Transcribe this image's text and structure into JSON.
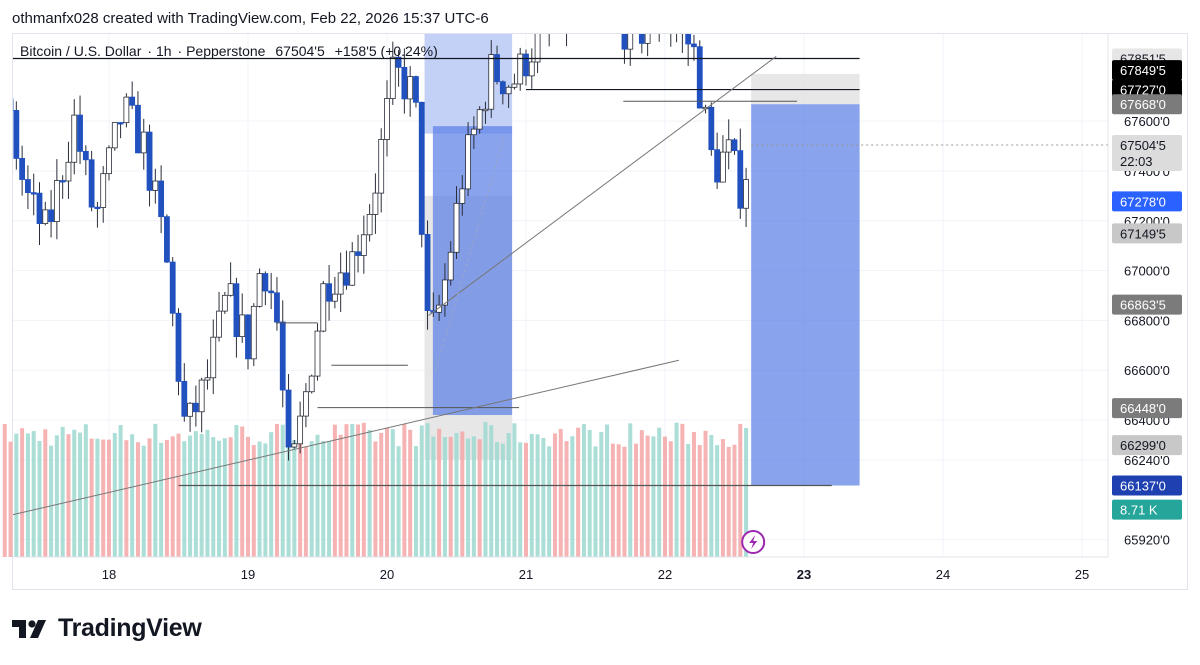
{
  "caption": "othmanfx028 created with TradingView.com, Feb 22, 2026 15:37 UTC-6",
  "symbol": {
    "name": "Bitcoin / U.S. Dollar",
    "interval": "1h",
    "exchange": "Pepperstone",
    "last": "67504'5",
    "change": "+158'5 (+0.24%)"
  },
  "brand": "TradingView",
  "colors": {
    "up": "#ffffff",
    "down": "#2151bf",
    "wick": "#2a2e39",
    "vol_up": "#9bd8cf",
    "vol_down": "#f5a6a6",
    "zone": "#5b7fe6",
    "zone_light": "#a9bdf3",
    "grey_zone": "#e4e4e4"
  },
  "chart_data": {
    "type": "candlestick",
    "x_axis": {
      "ticks": [
        "18",
        "19",
        "20",
        "21",
        "22",
        "23",
        "24",
        "25"
      ],
      "bold_tick": "23"
    },
    "y_axis": {
      "range": [
        65850,
        67950
      ],
      "ticks": [
        "67600'0",
        "67400'0",
        "67200'0",
        "67000'0",
        "66800'0",
        "66600'0",
        "66400'0",
        "66240'0",
        "65920'0"
      ]
    },
    "price_labels": [
      {
        "text": "67851'5",
        "price": 67851.5,
        "bg": "#e6e6e6",
        "fg": "#131722"
      },
      {
        "text": "67849'5",
        "price": 67805,
        "bg": "#000000",
        "fg": "#ffffff"
      },
      {
        "text": "67727'0",
        "price": 67727,
        "bg": "#000000",
        "fg": "#ffffff"
      },
      {
        "text": "67668'0",
        "price": 67668,
        "bg": "#7b7b7b",
        "fg": "#ffffff"
      },
      {
        "text": "67504'5",
        "price": 67504.5,
        "bg": "#dcdcdc",
        "fg": "#131722",
        "sub": "22:03"
      },
      {
        "text": "67278'0",
        "price": 67278,
        "bg": "#2962ff",
        "fg": "#ffffff"
      },
      {
        "text": "67149'5",
        "price": 67149.5,
        "bg": "#c8c8c8",
        "fg": "#131722"
      },
      {
        "text": "66863'5",
        "price": 66863.5,
        "bg": "#7b7b7b",
        "fg": "#ffffff"
      },
      {
        "text": "66448'0",
        "price": 66448,
        "bg": "#7b7b7b",
        "fg": "#ffffff"
      },
      {
        "text": "66299'0",
        "price": 66299,
        "bg": "#c8c8c8",
        "fg": "#131722"
      },
      {
        "text": "66137'0",
        "price": 66137,
        "bg": "#1e40b0",
        "fg": "#ffffff"
      },
      {
        "text": "8.71 K",
        "price": 66040,
        "bg": "#26a69a",
        "fg": "#ffffff"
      }
    ],
    "levels": [
      {
        "price": 67851.5,
        "from_day": 17.2,
        "to_day": 23.4,
        "color": "#131722"
      },
      {
        "price": 67727,
        "from_day": 21.0,
        "to_day": 23.4,
        "color": "#131722"
      },
      {
        "price": 66137,
        "from_day": 18.5,
        "to_day": 23.2,
        "color": "#555555"
      }
    ],
    "zones": [
      {
        "kind": "grey",
        "from_day": 20.27,
        "to_day": 20.9,
        "low": 66240,
        "high": 67300
      },
      {
        "kind": "light",
        "from_day": 20.27,
        "to_day": 20.9,
        "low": 67550,
        "high": 67950
      },
      {
        "kind": "blue",
        "from_day": 20.33,
        "to_day": 20.9,
        "low": 66420,
        "high": 67580
      },
      {
        "kind": "grey",
        "from_day": 22.62,
        "to_day": 23.4,
        "low": 67668,
        "high": 67790
      },
      {
        "kind": "blue",
        "from_day": 22.62,
        "to_day": 23.4,
        "low": 66137,
        "high": 67668
      }
    ]
  }
}
